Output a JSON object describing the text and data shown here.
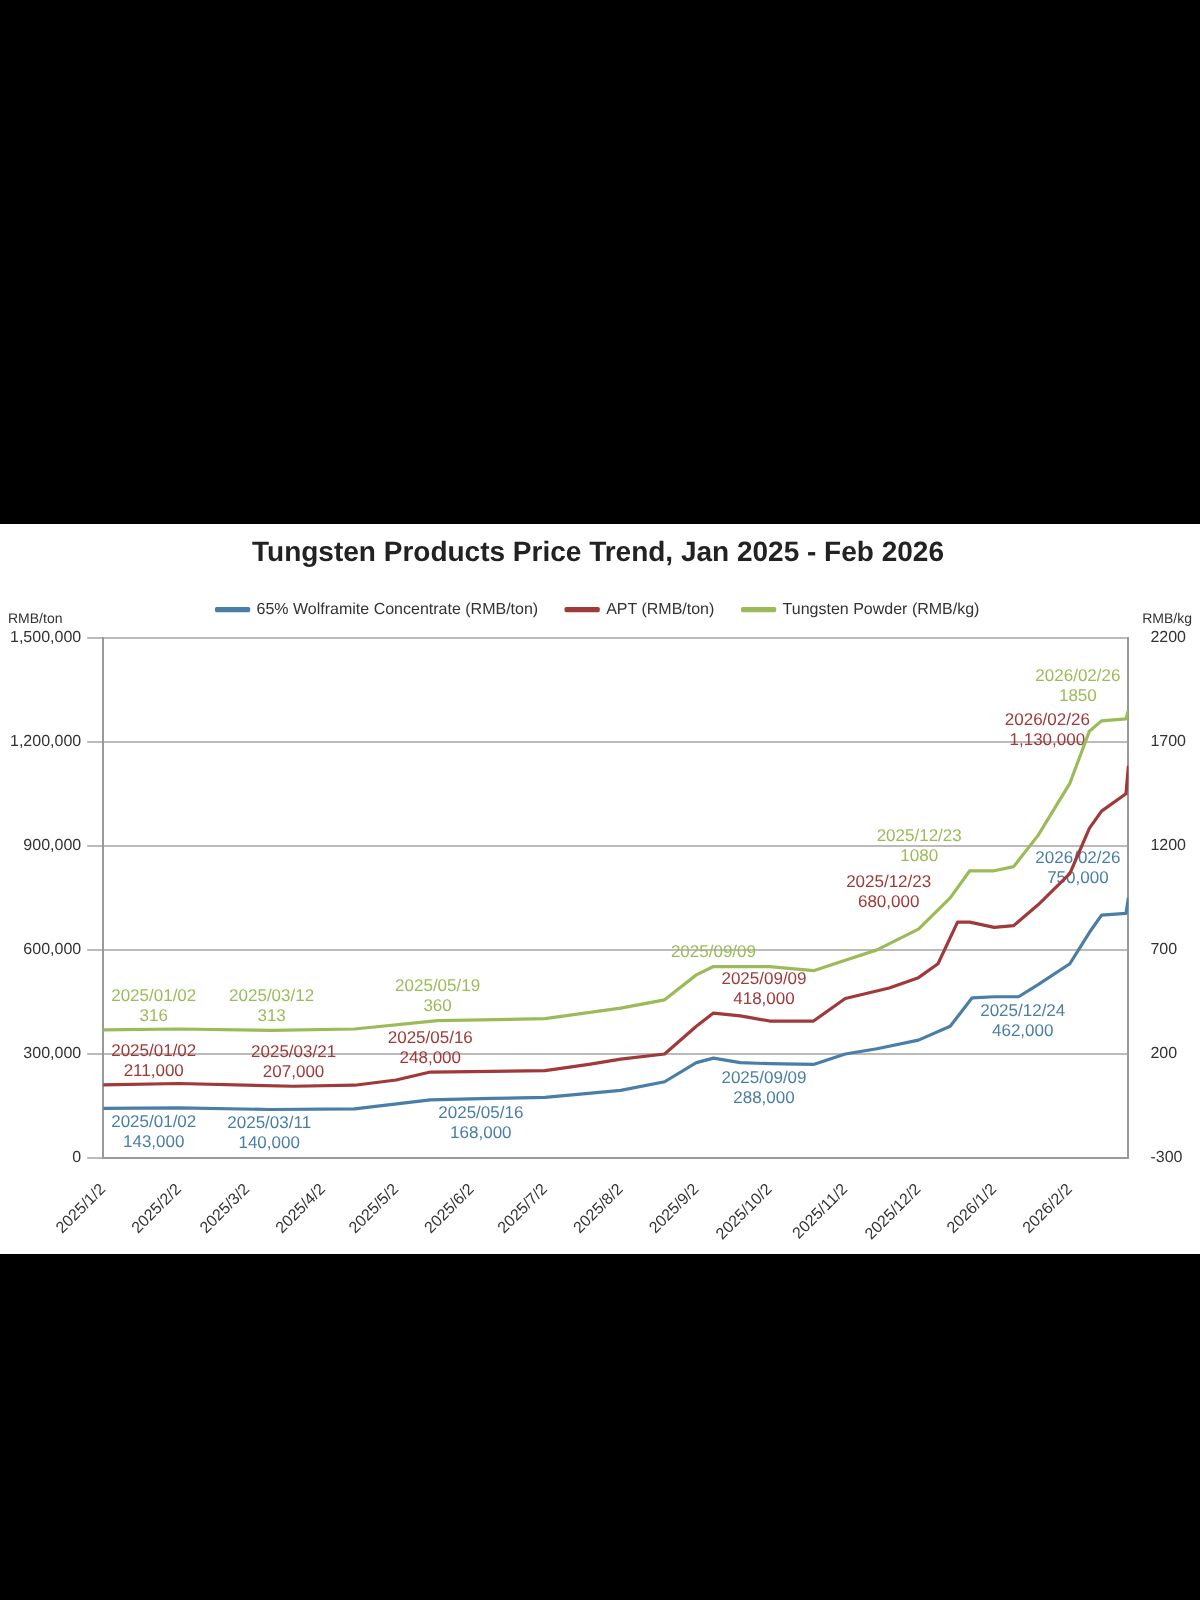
{
  "chart_data": {
    "type": "line",
    "title": "Tungsten Products Price Trend, Jan 2025 - Feb 2026",
    "ylabel": "RMB/ton",
    "y2label": "RMB/kg",
    "xlim": [
      "2025-01-02",
      "2026-02-26"
    ],
    "xticks": [
      {
        "value": "2025-01-02",
        "label": "2025/1/2"
      },
      {
        "value": "2025-02-02",
        "label": "2025/2/2"
      },
      {
        "value": "2025-03-02",
        "label": "2025/3/2"
      },
      {
        "value": "2025-04-02",
        "label": "2025/4/2"
      },
      {
        "value": "2025-05-02",
        "label": "2025/5/2"
      },
      {
        "value": "2025-06-02",
        "label": "2025/6/2"
      },
      {
        "value": "2025-07-02",
        "label": "2025/7/2"
      },
      {
        "value": "2025-08-02",
        "label": "2025/8/2"
      },
      {
        "value": "2025-09-02",
        "label": "2025/9/2"
      },
      {
        "value": "2025-10-02",
        "label": "2025/10/2"
      },
      {
        "value": "2025-11-02",
        "label": "2025/11/2"
      },
      {
        "value": "2025-12-02",
        "label": "2025/12/2"
      },
      {
        "value": "2026-01-02",
        "label": "2026/1/2"
      },
      {
        "value": "2026-02-02",
        "label": "2026/2/2"
      }
    ],
    "ylim": [
      0,
      1500000
    ],
    "yticks": [
      {
        "value": 0,
        "label": "0"
      },
      {
        "value": 300000,
        "label": "300,000"
      },
      {
        "value": 600000,
        "label": "600,000"
      },
      {
        "value": 900000,
        "label": "900,000"
      },
      {
        "value": 1200000,
        "label": "1,200,000"
      },
      {
        "value": 1500000,
        "label": "1,500,000"
      }
    ],
    "y2lim": [
      -300,
      2200
    ],
    "y2ticks": [
      -300,
      200,
      700,
      1200,
      1700,
      2200
    ],
    "grid": "y",
    "legend": "top",
    "marker": "none",
    "line_style": "solid",
    "series": [
      {
        "name": "65% Wolframite Concentrate (RMB/ton)",
        "color": "#4a7ea6",
        "x": [
          "2025-01-02",
          "2025-02-02",
          "2025-03-11",
          "2025-04-15",
          "2025-05-16",
          "2025-06-10",
          "2025-07-02",
          "2025-08-02",
          "2025-08-20",
          "2025-09-02",
          "2025-09-09",
          "2025-09-20",
          "2025-10-02",
          "2025-10-20",
          "2025-11-02",
          "2025-11-15",
          "2025-12-02",
          "2025-12-15",
          "2025-12-24",
          "2026-01-02",
          "2026-01-12",
          "2026-01-20",
          "2026-02-02",
          "2026-02-10",
          "2026-02-15",
          "2026-02-25",
          "2026-02-26"
        ],
        "values": [
          143000,
          145000,
          140000,
          142000,
          168000,
          172000,
          175000,
          195000,
          220000,
          275000,
          288000,
          275000,
          272000,
          270000,
          300000,
          315000,
          340000,
          380000,
          462000,
          465000,
          465000,
          500000,
          560000,
          650000,
          700000,
          705000,
          750000
        ]
      },
      {
        "name": "APT (RMB/ton)",
        "color": "#a0393a",
        "x": [
          "2025-01-02",
          "2025-02-02",
          "2025-03-21",
          "2025-04-15",
          "2025-05-02",
          "2025-05-16",
          "2025-06-10",
          "2025-07-02",
          "2025-07-20",
          "2025-08-02",
          "2025-08-20",
          "2025-09-02",
          "2025-09-09",
          "2025-09-20",
          "2025-10-02",
          "2025-10-20",
          "2025-11-02",
          "2025-11-20",
          "2025-12-02",
          "2025-12-10",
          "2025-12-18",
          "2025-12-23",
          "2026-01-02",
          "2026-01-10",
          "2026-01-20",
          "2026-02-02",
          "2026-02-10",
          "2026-02-15",
          "2026-02-25",
          "2026-02-26"
        ],
        "values": [
          211000,
          215000,
          207000,
          210000,
          225000,
          248000,
          250000,
          252000,
          270000,
          285000,
          300000,
          380000,
          418000,
          410000,
          395000,
          395000,
          460000,
          490000,
          520000,
          560000,
          680000,
          680000,
          665000,
          670000,
          730000,
          820000,
          950000,
          1000000,
          1050000,
          1130000
        ]
      },
      {
        "name": "Tungsten Powder (RMB/kg)",
        "color": "#9bbb59",
        "axis": "y2",
        "x": [
          "2025-01-02",
          "2025-02-02",
          "2025-03-12",
          "2025-04-15",
          "2025-05-19",
          "2025-07-02",
          "2025-08-02",
          "2025-08-20",
          "2025-09-02",
          "2025-09-09",
          "2025-10-02",
          "2025-10-20",
          "2025-11-02",
          "2025-11-15",
          "2025-12-02",
          "2025-12-15",
          "2025-12-23",
          "2026-01-02",
          "2026-01-10",
          "2026-01-20",
          "2026-02-02",
          "2026-02-10",
          "2026-02-15",
          "2026-02-25",
          "2026-02-26"
        ],
        "values": [
          316,
          320,
          313,
          320,
          360,
          370,
          420,
          460,
          580,
          620,
          620,
          600,
          650,
          700,
          800,
          950,
          1080,
          1080,
          1100,
          1250,
          1500,
          1750,
          1800,
          1810,
          1850
        ]
      }
    ],
    "annotations": [
      {
        "text": "2025/01/02\n316",
        "x": "2025-01-02",
        "y": 369600
      },
      {
        "text": "2025/03/12\n313",
        "x": "2025-03-12",
        "y": 367800
      },
      {
        "text": "2025/05/19\n360",
        "x": "2025-05-19",
        "y": 396000
      },
      {
        "text": "2025/01/02\n211,000",
        "x": "2025-01-02",
        "y": 211000
      },
      {
        "text": "2025/03/21\n207,000",
        "x": "2025-03-21",
        "y": 207000
      },
      {
        "text": "2025/05/16\n248,000",
        "x": "2025-05-16",
        "y": 248000
      },
      {
        "text": "2025/01/02\n143,000",
        "x": "2025-01-02",
        "y": 143000
      },
      {
        "text": "2025/03/11\n140,000",
        "x": "2025-03-11",
        "y": 140000
      },
      {
        "text": "2025/05/16\n168,000",
        "x": "2025-05-16",
        "y": 168000
      },
      {
        "text": "2025/09/09",
        "x": "2025-09-09",
        "y": 552000
      },
      {
        "text": "2025/09/09\n418,000",
        "x": "2025-09-09",
        "y": 418000
      },
      {
        "text": "2025/09/09\n288,000",
        "x": "2025-09-09",
        "y": 288000
      },
      {
        "text": "2025/12/23\n1080",
        "x": "2025-12-23",
        "y": 828000
      },
      {
        "text": "2025/12/23\n680,000",
        "x": "2025-12-23",
        "y": 680000
      },
      {
        "text": "2025/12/24\n462,000",
        "x": "2025-12-24",
        "y": 462000
      },
      {
        "text": "2026/02/26\n1850",
        "x": "2026-02-26",
        "y": 1290000
      },
      {
        "text": "2026/02/26\n1,130,000",
        "x": "2026-02-26",
        "y": 1130000
      },
      {
        "text": "2026/02/26\n750,000",
        "x": "2026-02-26",
        "y": 750000
      }
    ]
  }
}
